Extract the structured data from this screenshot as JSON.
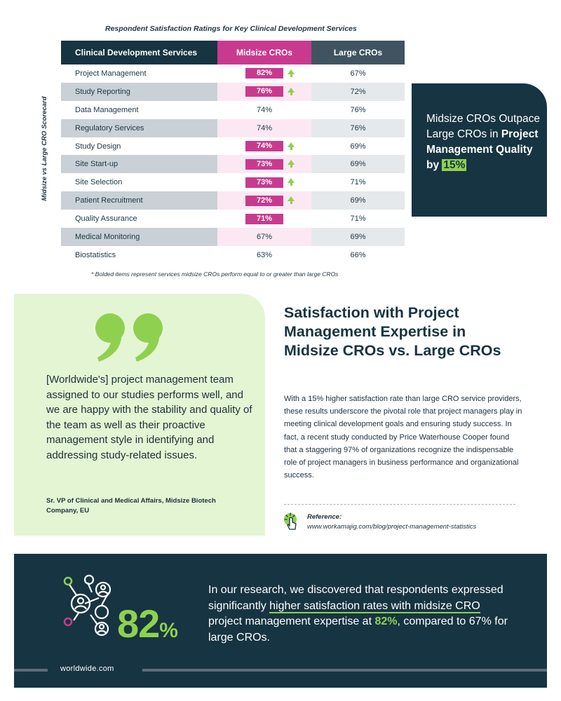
{
  "table": {
    "title": "Respondent Satisfaction Ratings for Key Clinical Development Services",
    "side_label": "Midsize vs Large CRO Scorecard",
    "headers": [
      "Clinical Development Services",
      "Midsize CROs",
      "Large CROs"
    ],
    "rows": [
      {
        "service": "Project Management",
        "midsize": "82%",
        "large": "67%",
        "bold": true
      },
      {
        "service": "Study Reporting",
        "midsize": "76%",
        "large": "72%",
        "bold": true
      },
      {
        "service": "Data Management",
        "midsize": "74%",
        "large": "76%",
        "bold": false
      },
      {
        "service": "Regulatory Services",
        "midsize": "74%",
        "large": "76%",
        "bold": false
      },
      {
        "service": "Study Design",
        "midsize": "74%",
        "large": "69%",
        "bold": true
      },
      {
        "service": "Site Start-up",
        "midsize": "73%",
        "large": "69%",
        "bold": true
      },
      {
        "service": "Site Selection",
        "midsize": "73%",
        "large": "71%",
        "bold": true
      },
      {
        "service": "Patient Recruitment",
        "midsize": "72%",
        "large": "69%",
        "bold": true
      },
      {
        "service": "Quality Assurance",
        "midsize": "71%",
        "large": "71%",
        "bold": true
      },
      {
        "service": "Medical Monitoring",
        "midsize": "67%",
        "large": "69%",
        "bold": false
      },
      {
        "service": "Biostatistics",
        "midsize": "63%",
        "large": "66%",
        "bold": false
      }
    ],
    "footnote": "* Bolded items represent services midsize CROs perform equal to or greater than large CROs"
  },
  "stat_box": {
    "line1": "Midsize CROs Outpace Large CROs in ",
    "bold": "Project Management Quality by ",
    "highlight": "15%"
  },
  "quote": {
    "text": "[Worldwide's] project management team assigned to our studies performs well, and we are happy with the stability and quality of the team as well as their proactive management style in identifying and addressing study-related issues.",
    "author": "Sr. VP of Clinical and Medical Affairs, Midsize Biotech Company, EU"
  },
  "article": {
    "heading": "Satisfaction with Project Management Expertise in Midsize CROs vs. Large CROs",
    "body": "With a 15% higher satisfaction rate than large CRO service providers, these results underscore the pivotal role that project managers play in meeting clinical development goals and ensuring study success. In fact, a recent study conducted by Price Waterhouse Cooper found that a staggering 97% of organizations recognize the indispensable role of project managers in business performance and organizational success.",
    "ref_label": "Reference:",
    "ref_url": "www.workamajig.com/blog/project-management-statistics"
  },
  "banner": {
    "big_number": "82",
    "big_unit": "%",
    "text_a": "In our research, we discovered that respondents expressed significantly ",
    "text_ul": "higher satisfaction rates with midsize CRO",
    "text_b": " project management expertise at ",
    "text_green": "82%",
    "text_c": ", compared to 67% for large CROs."
  },
  "footer": {
    "url": "worldwide.com"
  },
  "colors": {
    "navy": "#173442",
    "magenta": "#c93a8f",
    "green": "#8fd14f",
    "slate": "#3f5460"
  },
  "icons": [
    "up-arrow-icon",
    "quote-mark-icon",
    "click-cursor-icon",
    "people-network-icon"
  ]
}
